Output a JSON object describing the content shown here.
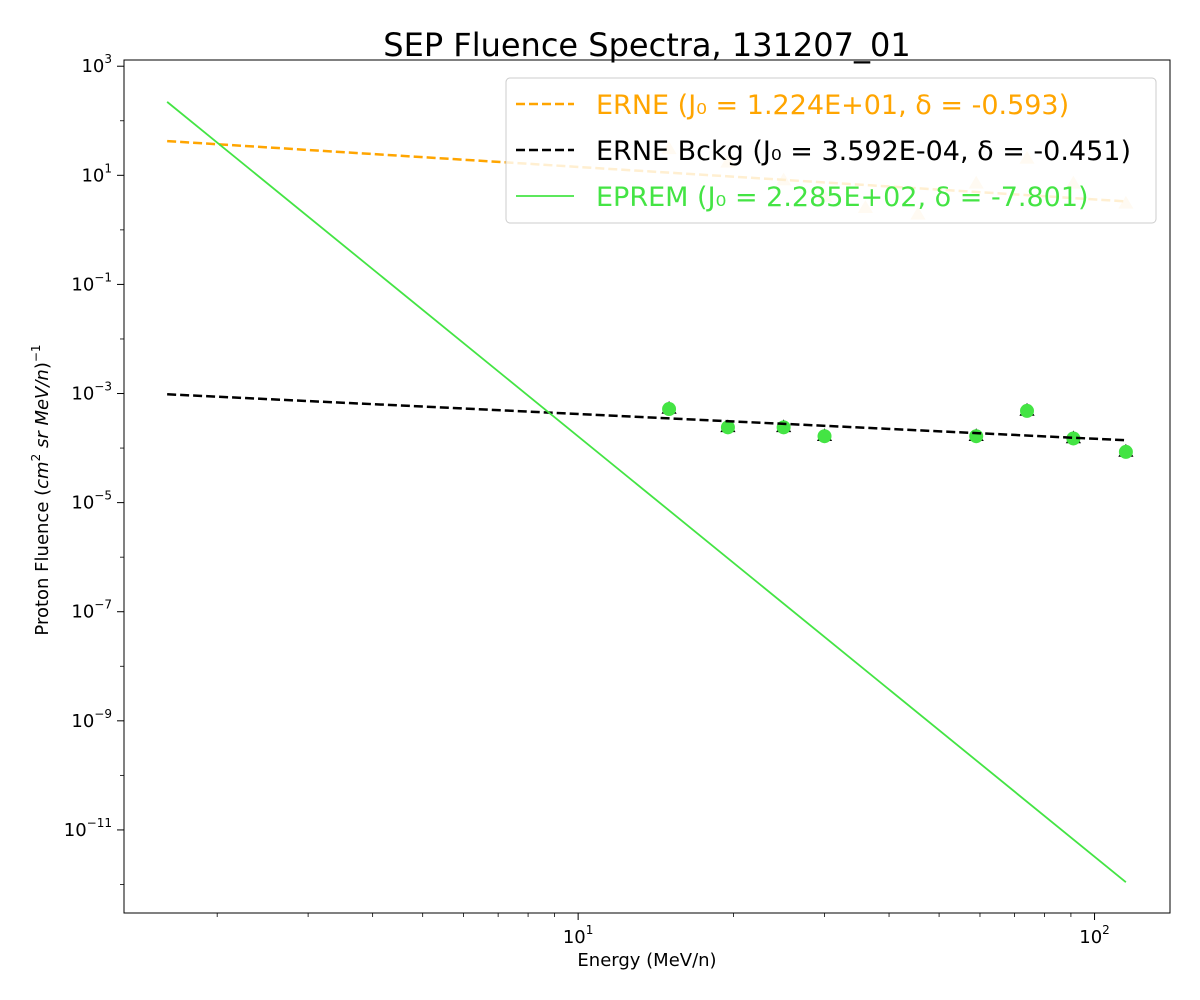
{
  "chart_data": {
    "type": "scatter",
    "title": "SEP Fluence Spectra, 131207_01",
    "xlabel": "Energy (MeV/n)",
    "ylabel": "Proton Fluence (cm² sr MeV/n)⁻¹",
    "xscale": "log",
    "yscale": "log",
    "xlim": [
      1.32,
      140
    ],
    "ylim": [
      3e-13,
      1300
    ],
    "grid": false,
    "legend_position": "top-right",
    "x_ticks": [
      {
        "value": 10,
        "base": "10",
        "exp": "1"
      },
      {
        "value": 100,
        "base": "10",
        "exp": "2"
      }
    ],
    "y_ticks": [
      {
        "value": 1000,
        "base": "10",
        "exp": "3"
      },
      {
        "value": 10,
        "base": "10",
        "exp": "1"
      },
      {
        "value": 0.1,
        "base": "10",
        "exp": "−1"
      },
      {
        "value": 0.001,
        "base": "10",
        "exp": "−3"
      },
      {
        "value": 1e-05,
        "base": "10",
        "exp": "−5"
      },
      {
        "value": 1e-07,
        "base": "10",
        "exp": "−7"
      },
      {
        "value": 1e-09,
        "base": "10",
        "exp": "−9"
      },
      {
        "value": 1e-11,
        "base": "10",
        "exp": "−11"
      }
    ],
    "series": [
      {
        "name": "ERNE (J₀ = 1.224E+01, δ = -0.593)",
        "kind": "fit-line",
        "color": "#ffa500",
        "style": "dashed",
        "x": [
          1.6,
          115
        ],
        "y": [
          42.4,
          3.33
        ]
      },
      {
        "name": "ERNE Bckg (J₀ = 3.592E-04, δ = -0.451)",
        "kind": "fit-line",
        "color": "#000000",
        "style": "dashed",
        "x": [
          1.6,
          115
        ],
        "y": [
          0.000968,
          0.000139
        ]
      },
      {
        "name": "EPREM (J₀ = 2.285E+02, δ = -7.801)",
        "kind": "fit-line",
        "color": "#44e444",
        "style": "solid",
        "x": [
          1.6,
          115
        ],
        "y": [
          222,
          1.1e-12
        ]
      },
      {
        "kind": "points",
        "marker": "triangle",
        "color": "#ffe4b5",
        "x": [
          15,
          19.5,
          25,
          30,
          36,
          45.5,
          59,
          74,
          91,
          115
        ],
        "y": [
          30,
          17,
          8,
          4,
          2.5,
          1.9,
          7,
          20,
          7,
          3
        ]
      },
      {
        "kind": "points",
        "marker": "triangle",
        "color": "#000000",
        "x": [
          15,
          19.5,
          25,
          30,
          59,
          74,
          91,
          115
        ],
        "y": [
          0.00052,
          0.00024,
          0.00024,
          0.000165,
          0.000165,
          0.00048,
          0.00015,
          8.5e-05
        ]
      },
      {
        "kind": "points",
        "marker": "circle",
        "color": "#44e444",
        "x": [
          15,
          19.5,
          25,
          30,
          59,
          74,
          91,
          115
        ],
        "y": [
          0.00052,
          0.00024,
          0.00024,
          0.000165,
          0.000165,
          0.00048,
          0.00015,
          8.5e-05
        ]
      }
    ]
  }
}
